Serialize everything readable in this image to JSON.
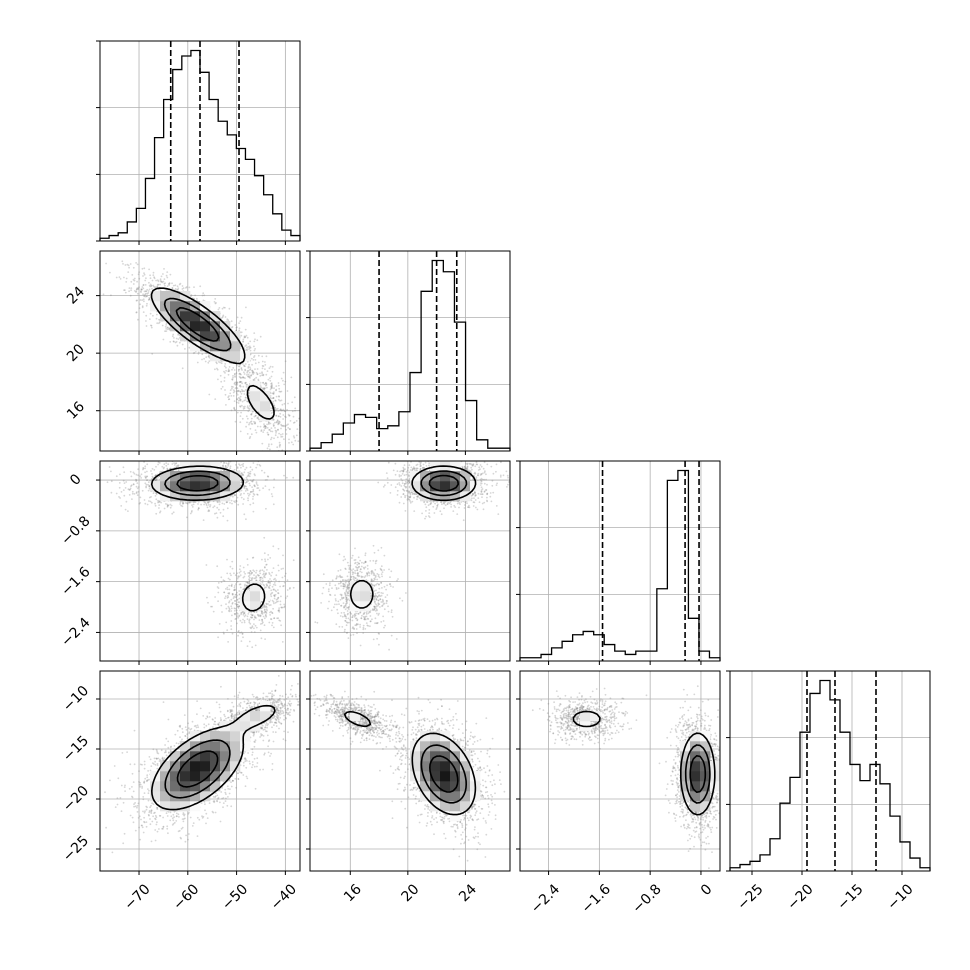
{
  "chart_data": {
    "type": "corner",
    "title": "",
    "n_params": 4,
    "params": [
      {
        "name": "",
        "range": [
          -78,
          -37
        ],
        "ticks": [
          -70,
          -60,
          -50,
          -40
        ],
        "quantiles": [
          -63.5,
          -57.5,
          -49.5
        ]
      },
      {
        "name": "",
        "range": [
          13.2,
          27.1
        ],
        "ticks": [
          16,
          20,
          24
        ],
        "quantiles": [
          18.0,
          22.0,
          23.4
        ]
      },
      {
        "name": "",
        "range": [
          -2.85,
          0.3
        ],
        "ticks": [
          -2.4,
          -1.6,
          -0.8,
          0.0
        ],
        "quantiles": [
          -1.55,
          -0.25,
          -0.03
        ]
      },
      {
        "name": "",
        "range": [
          -27.2,
          -7.2
        ],
        "ticks": [
          -25,
          -20,
          -15,
          -10
        ],
        "quantiles": [
          -19.5,
          -16.7,
          -12.6
        ]
      }
    ],
    "histograms": [
      {
        "values": [
          1,
          2,
          3,
          7,
          12,
          23,
          38,
          52,
          63,
          68,
          70,
          62,
          52,
          44,
          39,
          34,
          30,
          24,
          17,
          10,
          4,
          2
        ]
      },
      {
        "values": [
          1,
          3,
          6,
          10,
          13,
          12,
          8,
          9,
          14,
          28,
          57,
          68,
          64,
          46,
          18,
          4,
          1,
          1
        ]
      },
      {
        "values": [
          1,
          1,
          2,
          4,
          6,
          8,
          9,
          8,
          5,
          3,
          2,
          3,
          3,
          22,
          55,
          58,
          13,
          3,
          1
        ]
      },
      {
        "values": [
          1,
          2,
          3,
          5,
          10,
          21,
          29,
          43,
          55,
          59,
          53,
          43,
          33,
          28,
          33,
          27,
          17,
          9,
          4,
          1
        ]
      }
    ],
    "pairs": [
      {
        "row": 1,
        "col": 0,
        "modes": [
          {
            "cx": -58,
            "cy": 22,
            "sx": 6,
            "sy": 1.6,
            "rho": -0.8,
            "w": 0.72
          },
          {
            "cx": -45,
            "cy": 16.5,
            "sx": 3.5,
            "sy": 1.4,
            "rho": -0.6,
            "w": 0.28
          }
        ]
      },
      {
        "row": 2,
        "col": 0,
        "modes": [
          {
            "cx": -58,
            "cy": -0.05,
            "sx": 6,
            "sy": 0.17,
            "rho": 0.05,
            "w": 0.72
          },
          {
            "cx": -46.5,
            "cy": -1.85,
            "sx": 3,
            "sy": 0.28,
            "rho": 0.1,
            "w": 0.28
          }
        ]
      },
      {
        "row": 2,
        "col": 1,
        "modes": [
          {
            "cx": 22.5,
            "cy": -0.05,
            "sx": 1.4,
            "sy": 0.17,
            "rho": 0.0,
            "w": 0.72
          },
          {
            "cx": 16.8,
            "cy": -1.8,
            "sx": 1.0,
            "sy": 0.28,
            "rho": 0.0,
            "w": 0.28
          }
        ]
      },
      {
        "row": 3,
        "col": 0,
        "modes": [
          {
            "cx": -58,
            "cy": -17,
            "sx": 6,
            "sy": 2.6,
            "rho": 0.55,
            "w": 0.72
          },
          {
            "cx": -45,
            "cy": -11.5,
            "sx": 3.5,
            "sy": 1.0,
            "rho": 0.5,
            "w": 0.28
          }
        ]
      },
      {
        "row": 3,
        "col": 1,
        "modes": [
          {
            "cx": 22.5,
            "cy": -17.5,
            "sx": 1.4,
            "sy": 2.6,
            "rho": -0.35,
            "w": 0.72
          },
          {
            "cx": 16.5,
            "cy": -12,
            "sx": 1.2,
            "sy": 1.0,
            "rho": -0.6,
            "w": 0.28
          }
        ]
      },
      {
        "row": 3,
        "col": 2,
        "modes": [
          {
            "cx": -0.05,
            "cy": -17.5,
            "sx": 0.17,
            "sy": 2.6,
            "rho": 0.0,
            "w": 0.72
          },
          {
            "cx": -1.8,
            "cy": -12,
            "sx": 0.28,
            "sy": 1.0,
            "rho": 0.0,
            "w": 0.28
          }
        ]
      }
    ],
    "contour_levels": [
      0.3,
      0.55,
      0.8
    ],
    "grid": true,
    "colors": {
      "line": "#000000",
      "grid": "#b0b0b0",
      "points": "#8a8a8a"
    }
  }
}
